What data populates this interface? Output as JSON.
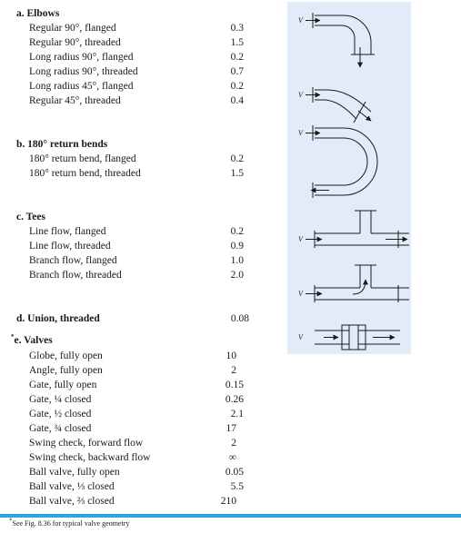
{
  "sections": {
    "elbows": {
      "header": "a. Elbows",
      "items": [
        {
          "name": "Regular 90°, flanged",
          "k": "0.3"
        },
        {
          "name": "Regular 90°, threaded",
          "k": "1.5"
        },
        {
          "name": "Long radius 90°, flanged",
          "k": "0.2"
        },
        {
          "name": "Long radius 90°, threaded",
          "k": "0.7"
        },
        {
          "name": "Long radius 45°, flanged",
          "k": "0.2"
        },
        {
          "name": "Regular 45°, threaded",
          "k": "0.4"
        }
      ]
    },
    "return_bends": {
      "header": "b. 180° return bends",
      "items": [
        {
          "name": "180° return bend, flanged",
          "k": "0.2"
        },
        {
          "name": "180° return bend, threaded",
          "k": "1.5"
        }
      ]
    },
    "tees": {
      "header": "c. Tees",
      "items": [
        {
          "name": "Line flow, flanged",
          "k": "0.2"
        },
        {
          "name": "Line flow, threaded",
          "k": "0.9"
        },
        {
          "name": "Branch flow, flanged",
          "k": "1.0"
        },
        {
          "name": "Branch flow, threaded",
          "k": "2.0"
        }
      ]
    },
    "union": {
      "header": "d. Union, threaded",
      "k": "0.08"
    },
    "valves": {
      "marker": "*",
      "header": "e. Valves",
      "items": [
        {
          "name": "Globe, fully open",
          "k": "10"
        },
        {
          "name": "Angle, fully open",
          "k": "2"
        },
        {
          "name": "Gate, fully open",
          "k": "0.15"
        },
        {
          "name": "Gate, ¼ closed",
          "k": "0.26"
        },
        {
          "name": "Gate, ½ closed",
          "k": "2.1"
        },
        {
          "name": "Gate, ¾ closed",
          "k": "17"
        },
        {
          "name": "Swing check, forward flow",
          "k": "2"
        },
        {
          "name": "Swing check, backward flow",
          "k": "∞"
        },
        {
          "name": "Ball valve, fully open",
          "k": "0.05"
        },
        {
          "name": "Ball valve, ⅓ closed",
          "k": "5.5"
        },
        {
          "name": "Ball valve, ⅔ closed",
          "k": "210"
        }
      ]
    }
  },
  "figure": {
    "velocity_label": "V"
  },
  "footnote": {
    "marker": "*",
    "text": "See Fig. 8.36 for typical valve geometry"
  },
  "colors": {
    "figure_background": "#e3eaf8",
    "rule": "#29a8e0",
    "ink": "#1a1a1a"
  }
}
